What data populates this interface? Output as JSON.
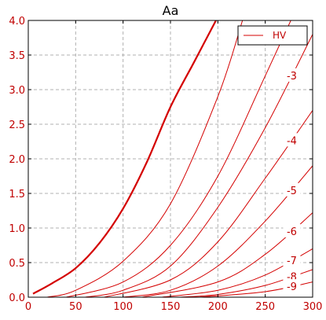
{
  "chart_data": {
    "type": "line",
    "title": "Aa",
    "xlabel": "",
    "ylabel": "",
    "xlim": [
      0,
      300
    ],
    "ylim": [
      0,
      4.0
    ],
    "xticks": [
      "0",
      "50",
      "100",
      "150",
      "200",
      "250",
      "300"
    ],
    "yticks": [
      "0.0",
      "0.5",
      "1.0",
      "1.5",
      "2.0",
      "2.5",
      "3.0",
      "3.5",
      "4.0"
    ],
    "grid": true,
    "legend": {
      "position": "top-right",
      "entries": [
        "HV"
      ]
    },
    "colors": {
      "curve": "#d40000",
      "tick": "#c00000",
      "grid": "#b0b0b0"
    },
    "series": [
      {
        "name": "0",
        "label": "",
        "bold": true,
        "x": [
          5,
          25,
          50,
          75,
          100,
          125,
          150,
          175,
          198
        ],
        "y": [
          0.05,
          0.2,
          0.42,
          0.78,
          1.28,
          1.95,
          2.75,
          3.4,
          4.0
        ]
      },
      {
        "name": "-1",
        "label": "",
        "x": [
          20,
          50,
          100,
          150,
          200,
          226
        ],
        "y": [
          0.0,
          0.1,
          0.52,
          1.35,
          2.9,
          4.0
        ]
      },
      {
        "name": "-2",
        "label": "",
        "x": [
          40,
          100,
          150,
          200,
          250,
          277
        ],
        "y": [
          0.0,
          0.22,
          0.75,
          1.75,
          3.2,
          4.0
        ]
      },
      {
        "name": "-3",
        "label": "-3",
        "x": [
          60,
          100,
          150,
          200,
          250,
          300
        ],
        "y": [
          0.0,
          0.1,
          0.45,
          1.3,
          2.45,
          3.8
        ]
      },
      {
        "name": "-4",
        "label": "-4",
        "x": [
          80,
          150,
          200,
          250,
          300
        ],
        "y": [
          0.0,
          0.25,
          0.8,
          1.72,
          2.7
        ]
      },
      {
        "name": "-5",
        "label": "-5",
        "x": [
          100,
          150,
          200,
          250,
          300
        ],
        "y": [
          0.0,
          0.1,
          0.45,
          1.1,
          1.9
        ]
      },
      {
        "name": "-6",
        "label": "-6",
        "x": [
          120,
          200,
          250,
          300
        ],
        "y": [
          0.0,
          0.22,
          0.62,
          1.22
        ]
      },
      {
        "name": "-7",
        "label": "-7",
        "x": [
          140,
          200,
          250,
          300
        ],
        "y": [
          0.0,
          0.1,
          0.32,
          0.7
        ]
      },
      {
        "name": "-8",
        "label": "-8",
        "x": [
          160,
          200,
          250,
          300
        ],
        "y": [
          0.0,
          0.04,
          0.17,
          0.4
        ]
      },
      {
        "name": "-9",
        "label": "-9",
        "x": [
          180,
          250,
          300
        ],
        "y": [
          0.0,
          0.08,
          0.22
        ]
      }
    ]
  }
}
